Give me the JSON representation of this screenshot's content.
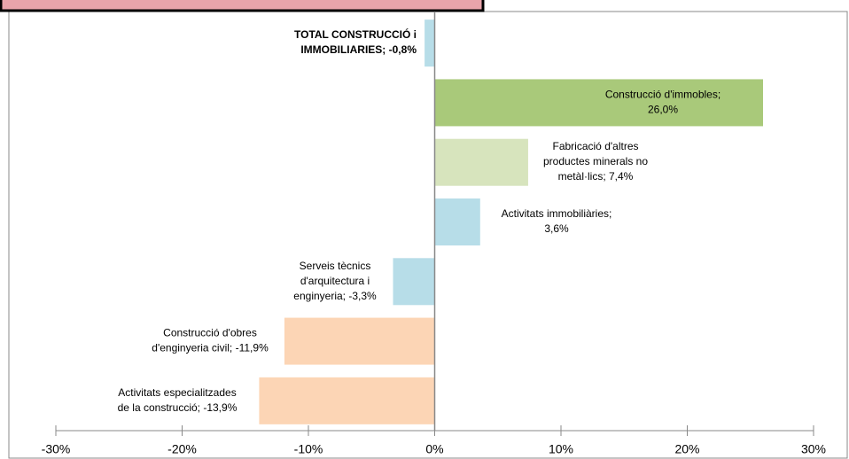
{
  "chart_data": {
    "type": "bar",
    "orientation": "horizontal",
    "values": [
      -0.8,
      26.0,
      7.4,
      3.6,
      -3.3,
      -11.9,
      -13.9
    ],
    "value_labels": [
      [
        "TOTAL CONSTRUCCIÓ  i",
        "IMMOBILIARIES;  -0,8%"
      ],
      [
        "Construcció d'immobles;",
        "26,0%"
      ],
      [
        "Fabricació d'altres",
        "productes minerals no",
        "metàl·lics; 7,4%"
      ],
      [
        "Activitats immobiliàries;",
        "3,6%"
      ],
      [
        "Serveis tècnics",
        "d'arquitectura i",
        "enginyeria; -3,3%"
      ],
      [
        "Construcció d'obres",
        "d'enginyeria civil; -11,9%"
      ],
      [
        "Activitats especialitzades",
        "de la construcció; -13,9%"
      ]
    ],
    "colors": [
      "#b7dde8",
      "#a9c97a",
      "#d7e4bd",
      "#b7dde8",
      "#b7dde8",
      "#fcd5b5",
      "#fcd5b5"
    ],
    "xlim": [
      -30,
      30
    ],
    "xticks": [
      {
        "value": -30,
        "label": "-30%"
      },
      {
        "value": -20,
        "label": "-20%"
      },
      {
        "value": -10,
        "label": "-10%"
      },
      {
        "value": 0,
        "label": "0%"
      },
      {
        "value": 10,
        "label": "10%"
      },
      {
        "value": 20,
        "label": "20%"
      },
      {
        "value": 30,
        "label": "30%"
      }
    ]
  }
}
